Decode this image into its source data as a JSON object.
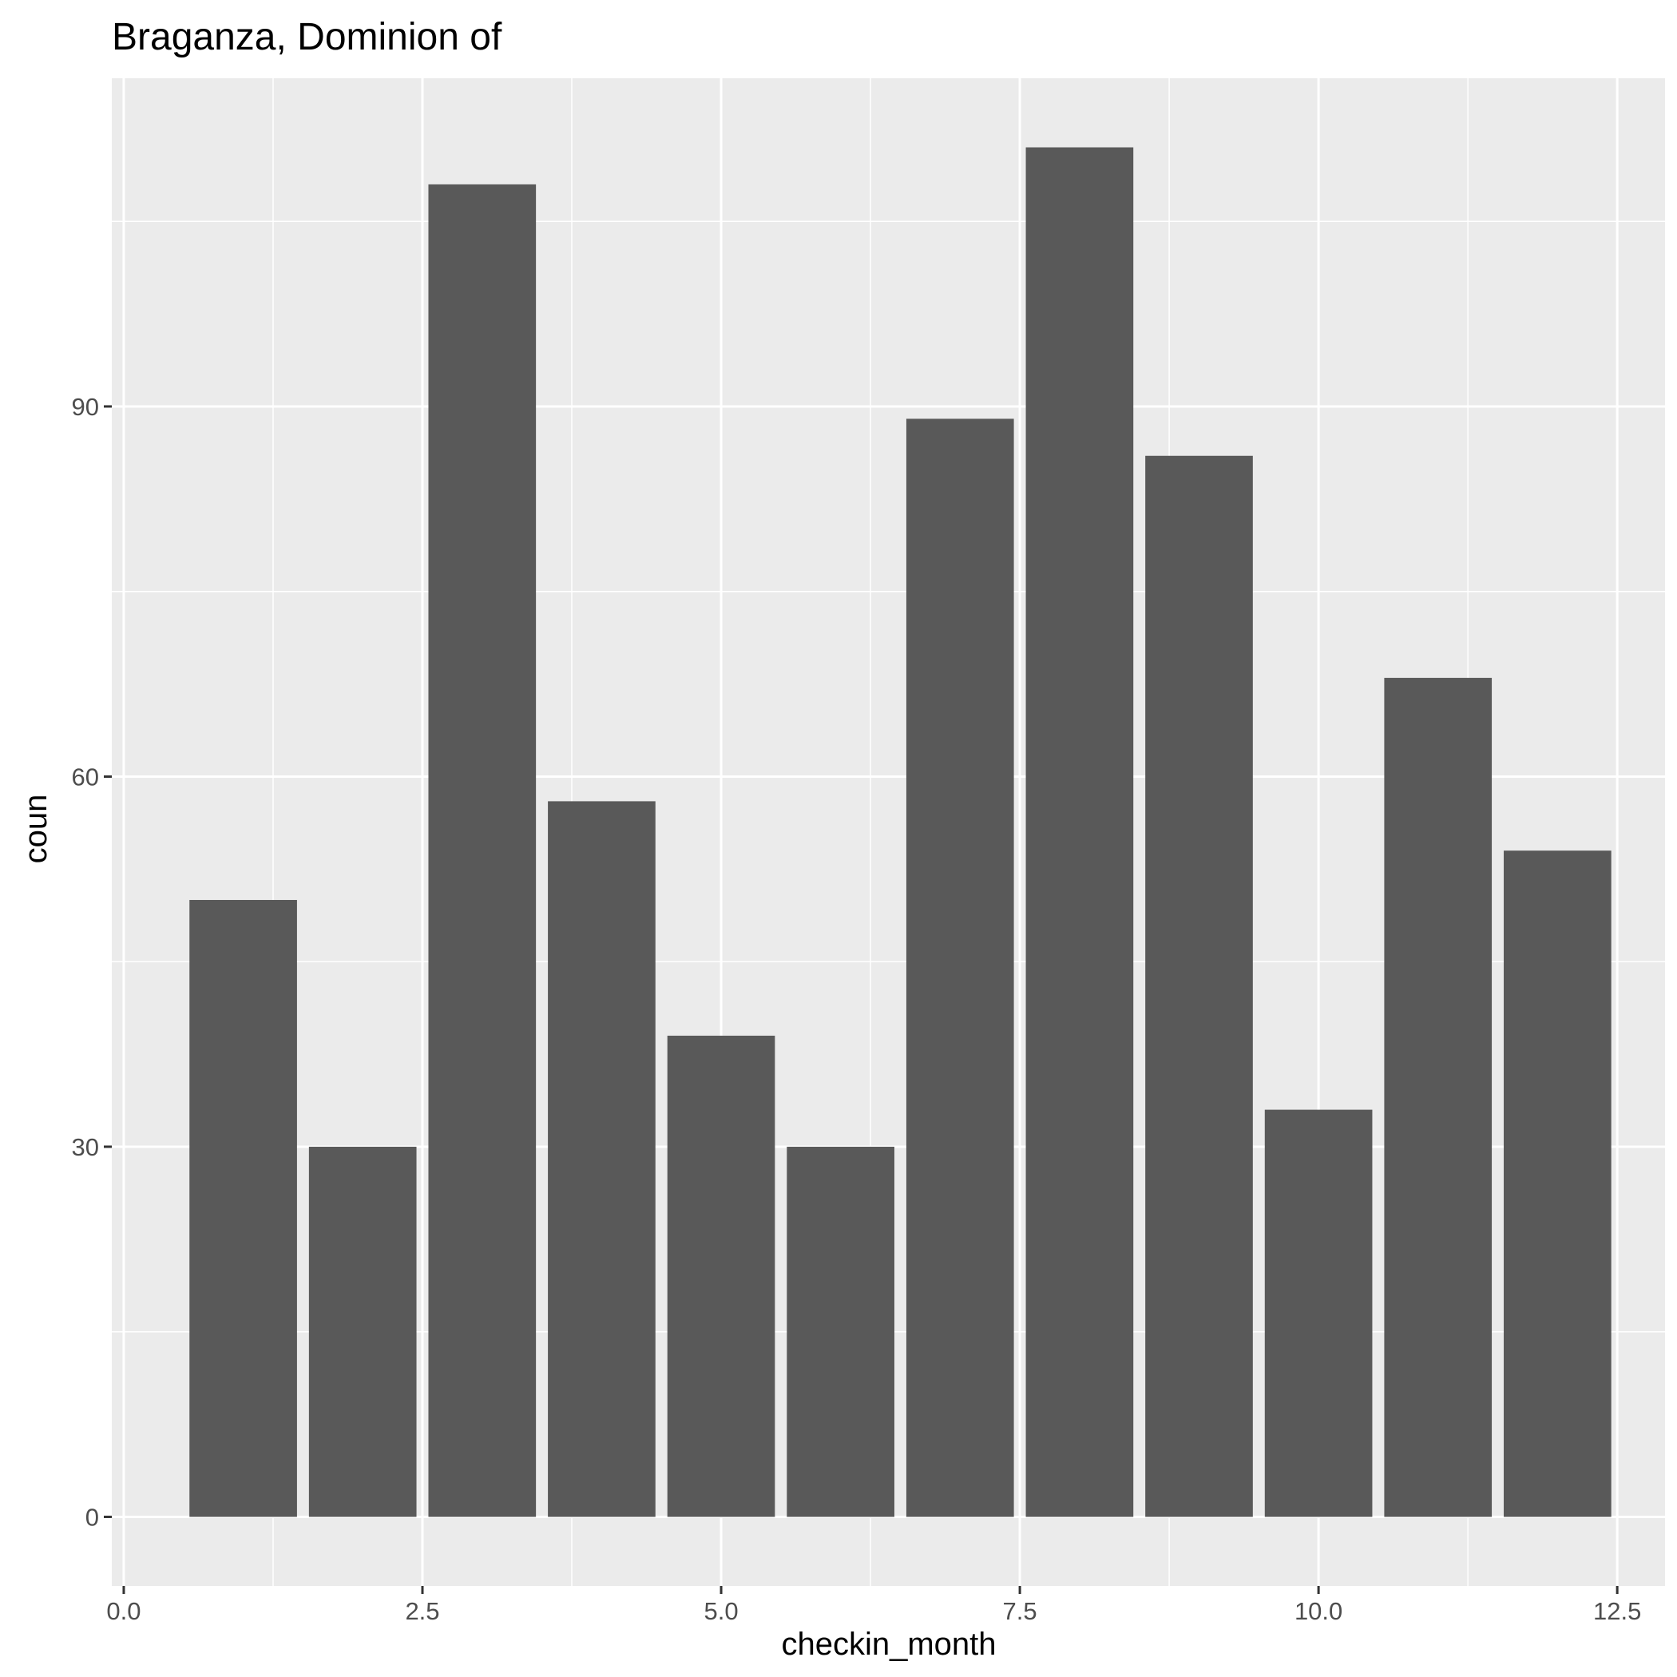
{
  "chart_data": {
    "type": "bar",
    "title": "Braganza, Dominion of",
    "xlabel": "checkin_month",
    "ylabel": "coun",
    "x": [
      1,
      2,
      3,
      4,
      5,
      6,
      7,
      8,
      9,
      10,
      11,
      12
    ],
    "values": [
      50,
      30,
      108,
      58,
      39,
      30,
      89,
      111,
      86,
      33,
      68,
      54
    ],
    "xlim": [
      -0.1,
      12.9
    ],
    "ylim": [
      -5.6,
      116.6
    ],
    "x_ticks": [
      "0.0",
      "2.5",
      "5.0",
      "7.5",
      "10.0",
      "12.5"
    ],
    "x_tick_values": [
      0,
      2.5,
      5,
      7.5,
      10,
      12.5
    ],
    "y_ticks": [
      "0",
      "30",
      "60",
      "90"
    ],
    "y_tick_values": [
      0,
      30,
      60,
      90
    ],
    "grid": true,
    "colors": {
      "bar": "#595959",
      "panel": "#ebebeb",
      "grid": "#ffffff"
    }
  }
}
